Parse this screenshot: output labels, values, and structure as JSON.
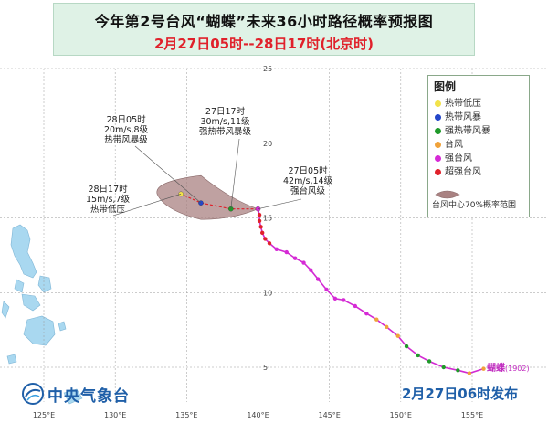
{
  "title": {
    "line1": "今年第2号台风“蝴蝶”未来36小时路径概率预报图",
    "line2": "2月27日05时--28日17时(北京时)"
  },
  "legend": {
    "title": "图例",
    "items": [
      {
        "label": "热带低压",
        "color": "#f2e24a"
      },
      {
        "label": "热带风暴",
        "color": "#2446c9"
      },
      {
        "label": "强热带风暴",
        "color": "#1f9a2a"
      },
      {
        "label": "台风",
        "color": "#f0a23a"
      },
      {
        "label": "强台风",
        "color": "#d62ad6"
      },
      {
        "label": "超强台风",
        "color": "#e0212b"
      }
    ],
    "prob_label": "台风中心70%概率范围"
  },
  "axes": {
    "lon_ticks": [
      "125°E",
      "130°E",
      "135°E",
      "140°E",
      "145°E",
      "150°E",
      "155°E"
    ],
    "lat_ticks": [
      "5",
      "10",
      "15",
      "20",
      "25"
    ]
  },
  "storm": {
    "name": "蝴蝶",
    "code": "(1902)"
  },
  "forecast_points": [
    {
      "time": "27日05时",
      "wind": "42m/s,14级",
      "category": "强台风级",
      "lon": 140.0,
      "lat": 15.6
    },
    {
      "time": "27日17时",
      "wind": "30m/s,11级",
      "category": "强热带风暴级",
      "lon": 138.1,
      "lat": 15.6
    },
    {
      "time": "28日05时",
      "wind": "20m/s,8级",
      "category": "热带风暴级",
      "lon": 136.0,
      "lat": 16.0
    },
    {
      "time": "28日17时",
      "wind": "15m/s,7级",
      "category": "热带低压",
      "lon": 134.6,
      "lat": 16.6
    }
  ],
  "past_track": [
    {
      "lon": 155.8,
      "lat": 4.9,
      "level": "台风"
    },
    {
      "lon": 154.8,
      "lat": 4.6,
      "level": "台风"
    },
    {
      "lon": 154.0,
      "lat": 4.8,
      "level": "强热带风暴"
    },
    {
      "lon": 153.0,
      "lat": 5.0,
      "level": "强热带风暴"
    },
    {
      "lon": 152.0,
      "lat": 5.4,
      "level": "强热带风暴"
    },
    {
      "lon": 151.2,
      "lat": 5.8,
      "level": "强热带风暴"
    },
    {
      "lon": 150.4,
      "lat": 6.4,
      "level": "强热带风暴"
    },
    {
      "lon": 149.8,
      "lat": 7.1,
      "level": "台风"
    },
    {
      "lon": 149.0,
      "lat": 7.7,
      "level": "台风"
    },
    {
      "lon": 148.3,
      "lat": 8.2,
      "level": "台风"
    },
    {
      "lon": 147.6,
      "lat": 8.6,
      "level": "强台风"
    },
    {
      "lon": 146.8,
      "lat": 9.1,
      "level": "强台风"
    },
    {
      "lon": 146.0,
      "lat": 9.5,
      "level": "强台风"
    },
    {
      "lon": 145.4,
      "lat": 9.6,
      "level": "强台风"
    },
    {
      "lon": 144.8,
      "lat": 10.2,
      "level": "强台风"
    },
    {
      "lon": 144.2,
      "lat": 10.9,
      "level": "强台风"
    },
    {
      "lon": 143.7,
      "lat": 11.5,
      "level": "强台风"
    },
    {
      "lon": 143.2,
      "lat": 12.0,
      "level": "强台风"
    },
    {
      "lon": 142.6,
      "lat": 12.3,
      "level": "强台风"
    },
    {
      "lon": 142.0,
      "lat": 12.7,
      "level": "强台风"
    },
    {
      "lon": 141.3,
      "lat": 12.9,
      "level": "强台风"
    },
    {
      "lon": 140.8,
      "lat": 13.3,
      "level": "超强台风"
    },
    {
      "lon": 140.5,
      "lat": 13.6,
      "level": "超强台风"
    },
    {
      "lon": 140.3,
      "lat": 14.0,
      "level": "超强台风"
    },
    {
      "lon": 140.2,
      "lat": 14.4,
      "level": "超强台风"
    },
    {
      "lon": 140.1,
      "lat": 14.8,
      "level": "超强台风"
    },
    {
      "lon": 140.1,
      "lat": 15.2,
      "level": "超强台风"
    },
    {
      "lon": 140.0,
      "lat": 15.6,
      "level": "强台风"
    }
  ],
  "colors": {
    "water": "#ffffff",
    "land": "#a9d8f0",
    "grid": "#9a9a9a",
    "track": "#d22ad2",
    "forecast": "#e0212b",
    "prob_area": "#a98282",
    "title_bg": "#dff2e6",
    "org": "#1f5fa8"
  },
  "org_name": "中央气象台",
  "issued": "2月27日06时发布"
}
